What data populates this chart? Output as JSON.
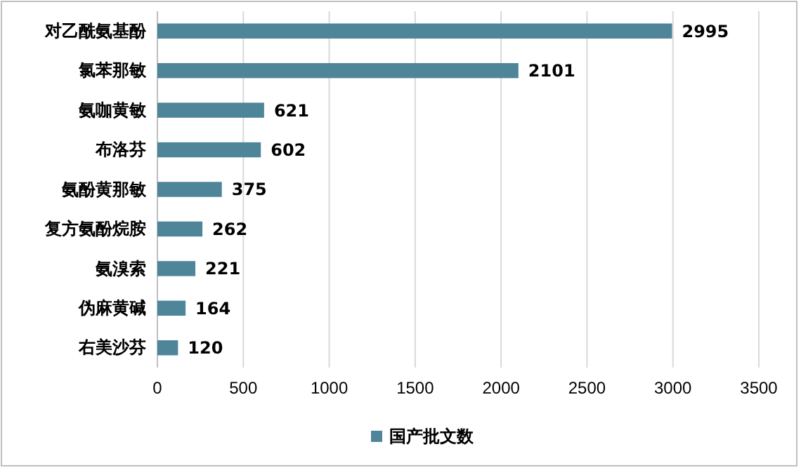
{
  "chart_data": {
    "type": "bar",
    "orientation": "horizontal",
    "categories": [
      "对乙酰氨基酚",
      "氯苯那敏",
      "氨咖黄敏",
      "布洛芬",
      "氨酚黄那敏",
      "复方氨酚烷胺",
      "氨溴索",
      "伪麻黄碱",
      "右美沙芬"
    ],
    "series": [
      {
        "name": "国产批文数",
        "color": "#4f8599",
        "values": [
          2995,
          2101,
          621,
          602,
          375,
          262,
          221,
          164,
          120
        ]
      }
    ],
    "xlim": [
      0,
      3500
    ],
    "xticks": [
      0,
      500,
      1000,
      1500,
      2000,
      2500,
      3000,
      3500
    ],
    "grid": "x",
    "legend": "bottom",
    "data_labels": true
  }
}
